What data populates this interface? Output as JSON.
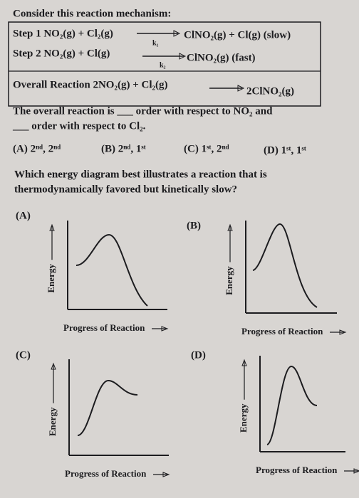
{
  "problem1": {
    "intro": "Consider this reaction mechanism:",
    "steps": [
      {
        "reactants": "Step 1 NO₂(g) + Cl₂(g)",
        "rate_constant": "k₁",
        "products": "ClNO₂(g) + Cl(g) (slow)"
      },
      {
        "reactants": "Step 2 NO₂(g) + Cl(g)",
        "rate_constant": "k₂",
        "products": "ClNO₂(g)  (fast)"
      }
    ],
    "overall": {
      "reactants": "Overall Reaction 2NO₂(g) + Cl₂(g)",
      "products": "2ClNO₂(g)"
    },
    "question_lines": [
      "The overall reaction is ___ order with respect to NO₂ and",
      "___ order with respect to Cl₂."
    ],
    "choices": [
      "(A) 2ⁿᵈ, 2ⁿᵈ",
      "(B) 2ⁿᵈ, 1ˢᵗ",
      "(C) 1ˢᵗ, 2ⁿᵈ",
      "(D) 1ˢᵗ, 1ˢᵗ"
    ]
  },
  "problem2": {
    "question_lines": [
      "Which energy diagram best illustrates a reaction that is",
      "thermodynamically favored but kinetically slow?"
    ],
    "diagrams": [
      {
        "label": "(A)",
        "y_axis": "Energy",
        "x_axis": "Progress of Reaction"
      },
      {
        "label": "(B)",
        "y_axis": "Energy",
        "x_axis": "Progress of Reaction"
      },
      {
        "label": "(C)",
        "y_axis": "Energy",
        "x_axis": "Progress of Reaction"
      },
      {
        "label": "(D)",
        "y_axis": "Energy",
        "x_axis": "Progress of Reaction"
      }
    ]
  }
}
